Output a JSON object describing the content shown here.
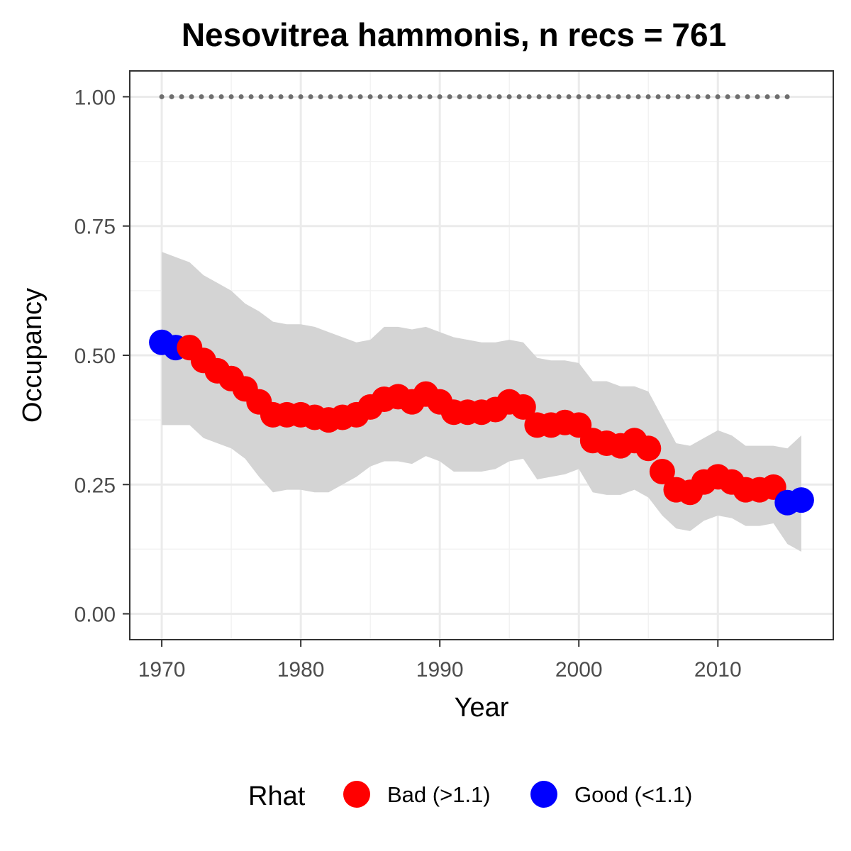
{
  "chart_data": {
    "type": "line",
    "title": "Nesovitrea hammonis, n recs = 761",
    "xlabel": "Year",
    "ylabel": "Occupancy",
    "xlim": [
      1967.7,
      2018.3
    ],
    "ylim": [
      -0.05,
      1.05
    ],
    "x_ticks": [
      1970,
      1980,
      1990,
      2000,
      2010
    ],
    "x_tick_labels": [
      "1970",
      "1980",
      "1990",
      "2000",
      "2010"
    ],
    "y_ticks": [
      0,
      0.25,
      0.5,
      0.75,
      1.0
    ],
    "y_tick_labels": [
      "0.00",
      "0.25",
      "0.50",
      "0.75",
      "1.00"
    ],
    "grid": true,
    "legend": {
      "title": "Rhat",
      "position": "bottom",
      "entries": [
        {
          "key": "bad",
          "label": "Bad (>1.1)",
          "color": "#ff0000"
        },
        {
          "key": "good",
          "label": "Good (<1.1)",
          "color": "#0000ff"
        }
      ]
    },
    "reference_line": {
      "y": 1.0,
      "style": "dotted",
      "color": "#6e6e6e",
      "x_from": 1970,
      "x_to": 2015
    },
    "ribbon_color": "#d4d4d4",
    "series": [
      {
        "name": "Occupancy",
        "x": [
          1970,
          1971,
          1972,
          1973,
          1974,
          1975,
          1976,
          1977,
          1978,
          1979,
          1980,
          1981,
          1982,
          1983,
          1984,
          1985,
          1986,
          1987,
          1988,
          1989,
          1990,
          1991,
          1992,
          1993,
          1994,
          1995,
          1996,
          1997,
          1998,
          1999,
          2000,
          2001,
          2002,
          2003,
          2004,
          2005,
          2006,
          2007,
          2008,
          2009,
          2010,
          2011,
          2012,
          2013,
          2014,
          2015,
          2016
        ],
        "y": [
          0.525,
          0.515,
          0.515,
          0.49,
          0.47,
          0.455,
          0.435,
          0.41,
          0.385,
          0.385,
          0.385,
          0.38,
          0.375,
          0.38,
          0.385,
          0.4,
          0.415,
          0.42,
          0.41,
          0.425,
          0.41,
          0.39,
          0.39,
          0.39,
          0.395,
          0.41,
          0.4,
          0.365,
          0.365,
          0.37,
          0.365,
          0.335,
          0.33,
          0.325,
          0.335,
          0.32,
          0.275,
          0.24,
          0.235,
          0.255,
          0.265,
          0.255,
          0.24,
          0.24,
          0.245,
          0.215,
          0.22
        ],
        "lower": [
          0.365,
          0.365,
          0.365,
          0.34,
          0.33,
          0.32,
          0.3,
          0.265,
          0.235,
          0.24,
          0.24,
          0.235,
          0.235,
          0.25,
          0.265,
          0.285,
          0.295,
          0.295,
          0.29,
          0.305,
          0.295,
          0.275,
          0.275,
          0.275,
          0.28,
          0.295,
          0.3,
          0.26,
          0.265,
          0.27,
          0.28,
          0.235,
          0.23,
          0.23,
          0.24,
          0.225,
          0.19,
          0.165,
          0.16,
          0.18,
          0.19,
          0.185,
          0.17,
          0.17,
          0.175,
          0.135,
          0.12
        ],
        "upper": [
          0.7,
          0.69,
          0.68,
          0.655,
          0.64,
          0.625,
          0.6,
          0.585,
          0.565,
          0.56,
          0.56,
          0.555,
          0.545,
          0.535,
          0.525,
          0.53,
          0.555,
          0.555,
          0.55,
          0.555,
          0.545,
          0.535,
          0.53,
          0.525,
          0.525,
          0.53,
          0.525,
          0.495,
          0.49,
          0.49,
          0.485,
          0.45,
          0.45,
          0.44,
          0.44,
          0.43,
          0.38,
          0.33,
          0.325,
          0.34,
          0.355,
          0.345,
          0.325,
          0.325,
          0.325,
          0.32,
          0.345
        ],
        "rhat": [
          "good",
          "good",
          "bad",
          "bad",
          "bad",
          "bad",
          "bad",
          "bad",
          "bad",
          "bad",
          "bad",
          "bad",
          "bad",
          "bad",
          "bad",
          "bad",
          "bad",
          "bad",
          "bad",
          "bad",
          "bad",
          "bad",
          "bad",
          "bad",
          "bad",
          "bad",
          "bad",
          "bad",
          "bad",
          "bad",
          "bad",
          "bad",
          "bad",
          "bad",
          "bad",
          "bad",
          "bad",
          "bad",
          "bad",
          "bad",
          "bad",
          "bad",
          "bad",
          "bad",
          "bad",
          "good",
          "good"
        ]
      }
    ]
  }
}
